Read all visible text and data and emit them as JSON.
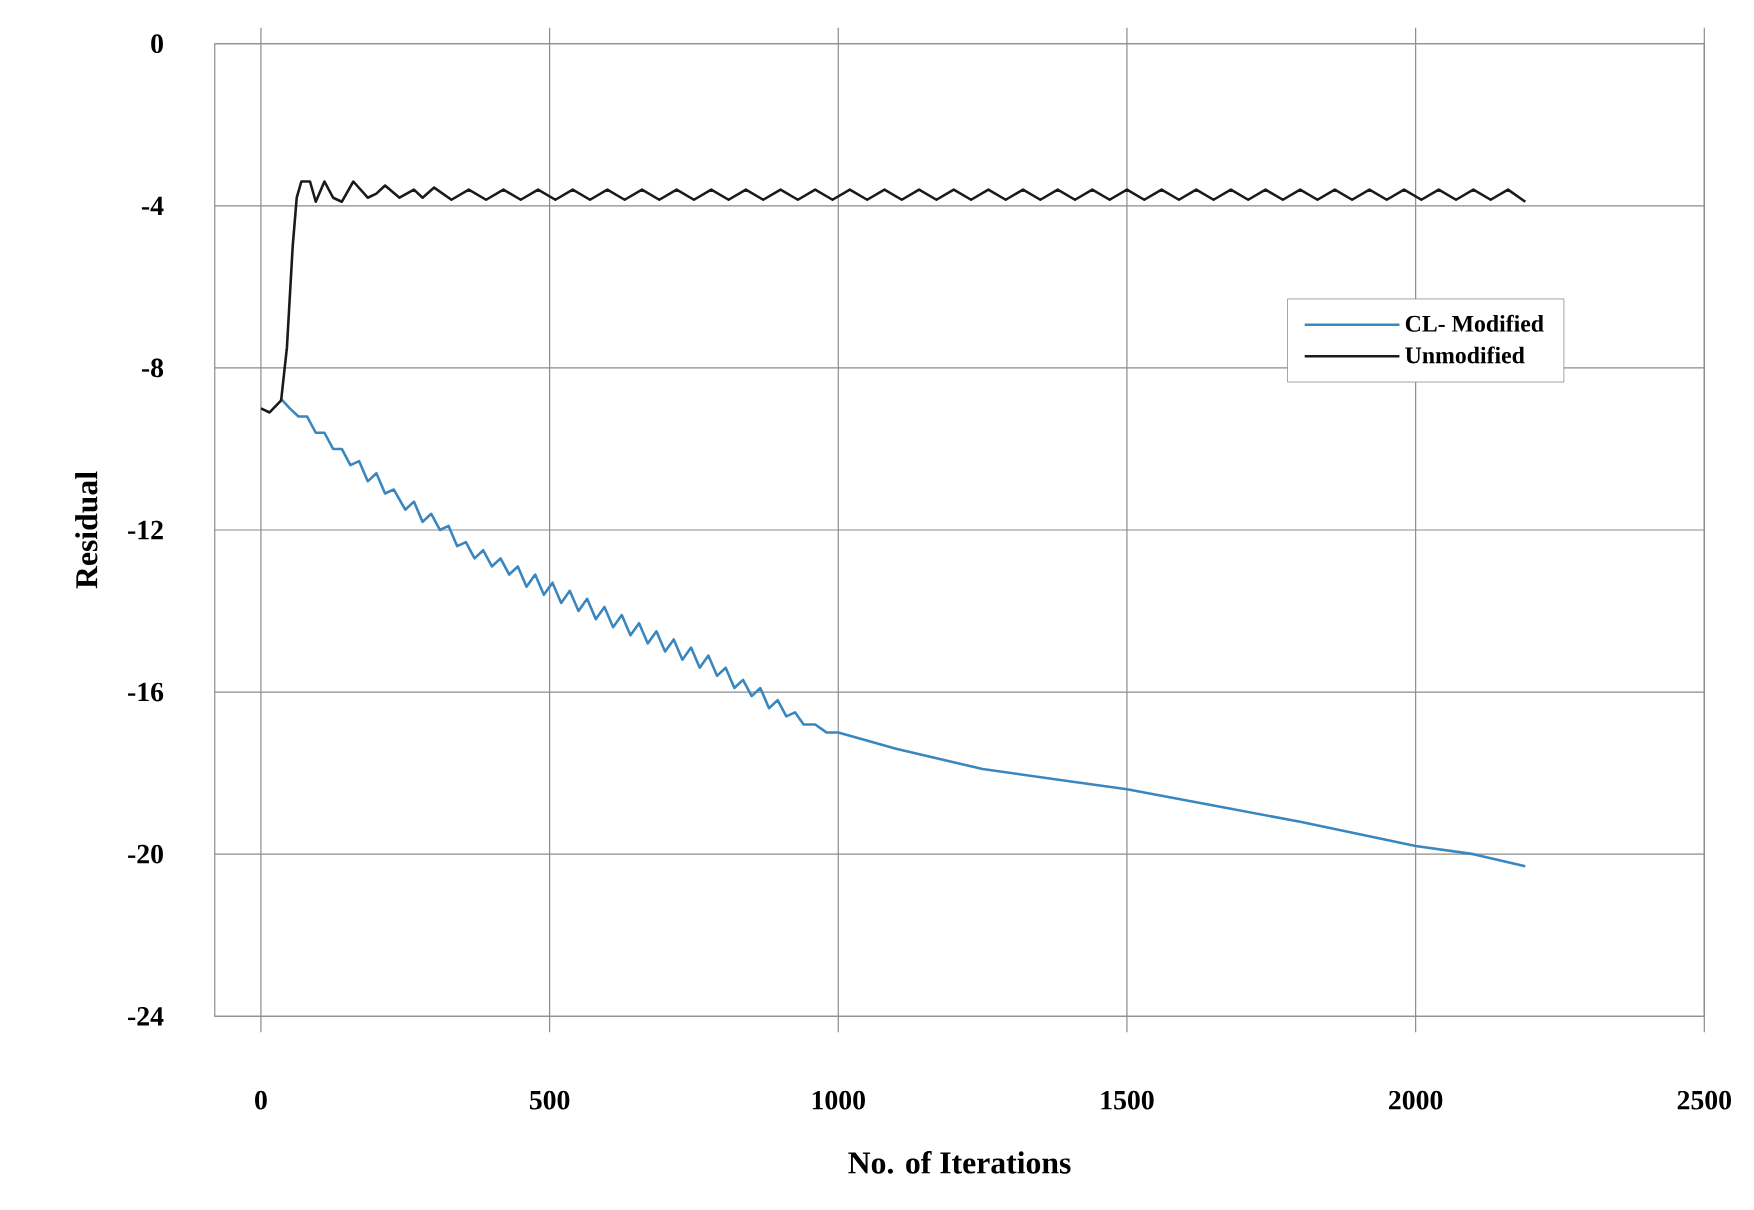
{
  "chart_data": {
    "type": "line",
    "xlabel": "No. of  Iterations",
    "ylabel": "Residual",
    "xlim": [
      -80,
      2500
    ],
    "xticks": [
      0,
      500,
      1000,
      1500,
      2000,
      2500
    ],
    "ylim": [
      -24,
      0
    ],
    "yticks": [
      -24,
      -20,
      -16,
      -12,
      -8,
      -4,
      0
    ],
    "grid": true,
    "legend": "right",
    "marker": "none",
    "line_style": "solid",
    "series": [
      {
        "name": "CL- Modified",
        "color": "#3a87c0",
        "x": [
          34,
          50,
          65,
          80,
          95,
          110,
          125,
          140,
          155,
          170,
          185,
          200,
          215,
          230,
          250,
          265,
          280,
          295,
          310,
          325,
          340,
          355,
          370,
          385,
          400,
          415,
          430,
          445,
          460,
          475,
          490,
          505,
          520,
          535,
          550,
          565,
          580,
          595,
          610,
          625,
          640,
          655,
          670,
          685,
          700,
          715,
          730,
          745,
          760,
          775,
          790,
          805,
          820,
          835,
          850,
          865,
          880,
          895,
          910,
          925,
          940,
          960,
          980,
          1000,
          1100,
          1250,
          1400,
          1500,
          1650,
          1800,
          2000,
          2100,
          2190
        ],
        "values": [
          -8.75,
          -9.0,
          -9.2,
          -9.2,
          -9.6,
          -9.6,
          -10.0,
          -10.0,
          -10.4,
          -10.3,
          -10.8,
          -10.6,
          -11.1,
          -11.0,
          -11.5,
          -11.3,
          -11.8,
          -11.6,
          -12.0,
          -11.9,
          -12.4,
          -12.3,
          -12.7,
          -12.5,
          -12.9,
          -12.7,
          -13.1,
          -12.9,
          -13.4,
          -13.1,
          -13.6,
          -13.3,
          -13.8,
          -13.5,
          -14.0,
          -13.7,
          -14.2,
          -13.9,
          -14.4,
          -14.1,
          -14.6,
          -14.3,
          -14.8,
          -14.5,
          -15.0,
          -14.7,
          -15.2,
          -14.9,
          -15.4,
          -15.1,
          -15.6,
          -15.4,
          -15.9,
          -15.7,
          -16.1,
          -15.9,
          -16.4,
          -16.2,
          -16.6,
          -16.5,
          -16.8,
          -16.8,
          -17.0,
          -17.0,
          -17.4,
          -17.9,
          -18.2,
          -18.4,
          -18.8,
          -19.2,
          -19.8,
          -20.0,
          -20.3
        ]
      },
      {
        "name": "Unmodified",
        "color": "#1a1a1a",
        "x": [
          0,
          15,
          35,
          45,
          55,
          62,
          70,
          85,
          95,
          110,
          125,
          140,
          160,
          185,
          200,
          215,
          240,
          265,
          280,
          300,
          330,
          360,
          390,
          420,
          450,
          480,
          510,
          540,
          570,
          600,
          630,
          660,
          690,
          720,
          750,
          780,
          810,
          840,
          870,
          900,
          930,
          960,
          990,
          1020,
          1050,
          1080,
          1110,
          1140,
          1170,
          1200,
          1230,
          1260,
          1290,
          1320,
          1350,
          1380,
          1410,
          1440,
          1470,
          1500,
          1530,
          1560,
          1590,
          1620,
          1650,
          1680,
          1710,
          1740,
          1770,
          1800,
          1830,
          1860,
          1890,
          1920,
          1950,
          1980,
          2010,
          2040,
          2070,
          2100,
          2130,
          2160,
          2190
        ],
        "values": [
          -9.0,
          -9.1,
          -8.8,
          -7.5,
          -5.0,
          -3.8,
          -3.4,
          -3.4,
          -3.9,
          -3.4,
          -3.8,
          -3.9,
          -3.4,
          -3.8,
          -3.7,
          -3.5,
          -3.8,
          -3.6,
          -3.8,
          -3.55,
          -3.85,
          -3.6,
          -3.85,
          -3.6,
          -3.85,
          -3.6,
          -3.85,
          -3.6,
          -3.85,
          -3.6,
          -3.85,
          -3.6,
          -3.85,
          -3.6,
          -3.85,
          -3.6,
          -3.85,
          -3.6,
          -3.85,
          -3.6,
          -3.85,
          -3.6,
          -3.85,
          -3.6,
          -3.85,
          -3.6,
          -3.85,
          -3.6,
          -3.85,
          -3.6,
          -3.85,
          -3.6,
          -3.85,
          -3.6,
          -3.85,
          -3.6,
          -3.85,
          -3.6,
          -3.85,
          -3.6,
          -3.85,
          -3.6,
          -3.85,
          -3.6,
          -3.85,
          -3.6,
          -3.85,
          -3.6,
          -3.85,
          -3.6,
          -3.85,
          -3.6,
          -3.85,
          -3.6,
          -3.85,
          -3.6,
          -3.85,
          -3.6,
          -3.85,
          -3.6,
          -3.85,
          -3.6,
          -3.9
        ]
      }
    ]
  }
}
